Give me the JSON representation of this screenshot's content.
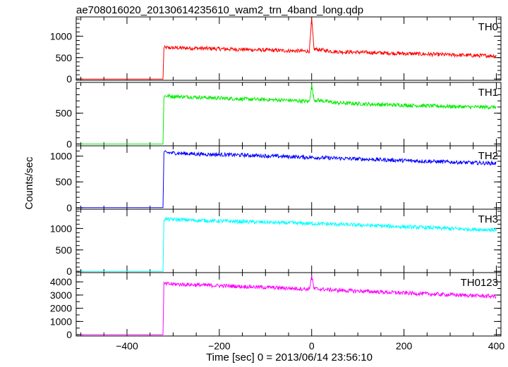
{
  "header": {
    "title": "ae708016020_20130614235610_wam2_trn_4band_long.qdp"
  },
  "chart_data": {
    "type": "line",
    "title": "ae708016020_20130614235610_wam2_trn_4band_long.qdp",
    "xlabel": "Time [sec] 0 = 2013/06/14 23:56:10",
    "ylabel": "Counts/sec",
    "xlim": [
      -510,
      410
    ],
    "xticks": [
      -400,
      -200,
      0,
      200,
      400
    ],
    "xtick_labels": [
      "−400",
      "−200",
      "0",
      "200",
      "400"
    ],
    "grid": false,
    "panels": [
      {
        "name": "TH0",
        "color": "#ff0000",
        "ylim": [
          -30,
          1450
        ],
        "yticks": [
          0,
          500,
          1000
        ],
        "yminor": 100,
        "series": [
          {
            "name": "TH0",
            "x": [
              -500,
              -322,
              -320,
              -250,
              -150,
              -50,
              -5,
              0,
              5,
              50,
              150,
              250,
              350,
              400
            ],
            "y": [
              0,
              0,
              730,
              720,
              690,
              660,
              650,
              1400,
              700,
              640,
              610,
              580,
              550,
              540
            ]
          }
        ]
      },
      {
        "name": "TH1",
        "color": "#00ee00",
        "ylim": [
          -30,
          1000
        ],
        "yticks": [
          0,
          500
        ],
        "yminor": 100,
        "series": [
          {
            "name": "TH1",
            "x": [
              -500,
              -322,
              -320,
              -250,
              -150,
              -50,
              -5,
              0,
              5,
              50,
              150,
              250,
              350,
              400
            ],
            "y": [
              0,
              0,
              780,
              760,
              730,
              710,
              690,
              960,
              720,
              670,
              640,
              620,
              600,
              600
            ]
          }
        ]
      },
      {
        "name": "TH2",
        "color": "#0000ff",
        "ylim": [
          -30,
          1200
        ],
        "yticks": [
          0,
          500,
          1000
        ],
        "yminor": 100,
        "series": [
          {
            "name": "TH2",
            "x": [
              -500,
              -322,
              -320,
              -250,
              -150,
              -50,
              50,
              150,
              250,
              350,
              400
            ],
            "y": [
              0,
              0,
              1070,
              1040,
              1020,
              990,
              960,
              930,
              900,
              870,
              860
            ]
          }
        ]
      },
      {
        "name": "TH3",
        "color": "#00ffff",
        "ylim": [
          -30,
          1450
        ],
        "yticks": [
          0,
          500,
          1000
        ],
        "yminor": 100,
        "series": [
          {
            "name": "TH3",
            "x": [
              -500,
              -322,
              -320,
              -250,
              -150,
              -50,
              50,
              150,
              250,
              350,
              400
            ],
            "y": [
              0,
              0,
              1220,
              1190,
              1160,
              1130,
              1100,
              1060,
              1020,
              980,
              970
            ]
          }
        ]
      },
      {
        "name": "TH0123",
        "color": "#ff00ff",
        "ylim": [
          -100,
          4700
        ],
        "yticks": [
          0,
          1000,
          2000,
          3000,
          4000
        ],
        "yminor": 500,
        "series": [
          {
            "name": "TH0123",
            "x": [
              -500,
              -322,
              -320,
              -250,
              -150,
              -50,
              -5,
              0,
              5,
              50,
              150,
              250,
              350,
              400
            ],
            "y": [
              0,
              0,
              3850,
              3770,
              3650,
              3520,
              3450,
              4450,
              3480,
              3380,
              3230,
              3090,
              2960,
              2900
            ]
          }
        ]
      }
    ]
  }
}
